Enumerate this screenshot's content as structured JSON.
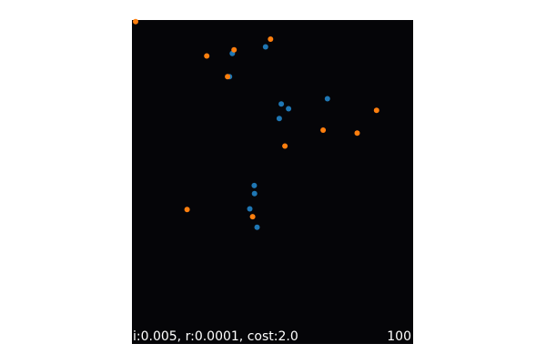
{
  "status": {
    "params_label": "i:0.005, r:0.0001, cost:2.0",
    "step_label": "100"
  },
  "colors": {
    "background": "#050508",
    "series_a": "#1f77b4",
    "series_b": "#ff7f0e"
  },
  "chart_data": {
    "type": "scatter",
    "xlim": [
      0,
      100
    ],
    "ylim": [
      0,
      100
    ],
    "grid": false,
    "series": [
      {
        "color": "#1f77b4",
        "points": [
          [
            47.5,
            91.7
          ],
          [
            35.7,
            89.7
          ],
          [
            34.7,
            82.5
          ],
          [
            69.5,
            75.7
          ],
          [
            53.1,
            74.1
          ],
          [
            55.7,
            72.6
          ],
          [
            52.4,
            69.6
          ],
          [
            41.9,
            41.7
          ],
          [
            43.6,
            46.4
          ],
          [
            43.5,
            48.9
          ],
          [
            44.5,
            36.0
          ]
        ]
      },
      {
        "color": "#ff7f0e",
        "points": [
          [
            1.3,
            99.5
          ],
          [
            49.3,
            94.1
          ],
          [
            36.3,
            90.8
          ],
          [
            26.6,
            88.9
          ],
          [
            34.0,
            82.5
          ],
          [
            87.0,
            72.1
          ],
          [
            80.1,
            65.1
          ],
          [
            54.4,
            61.1
          ],
          [
            19.6,
            41.5
          ],
          [
            42.9,
            39.3
          ],
          [
            68.0,
            66.0
          ]
        ]
      }
    ]
  }
}
